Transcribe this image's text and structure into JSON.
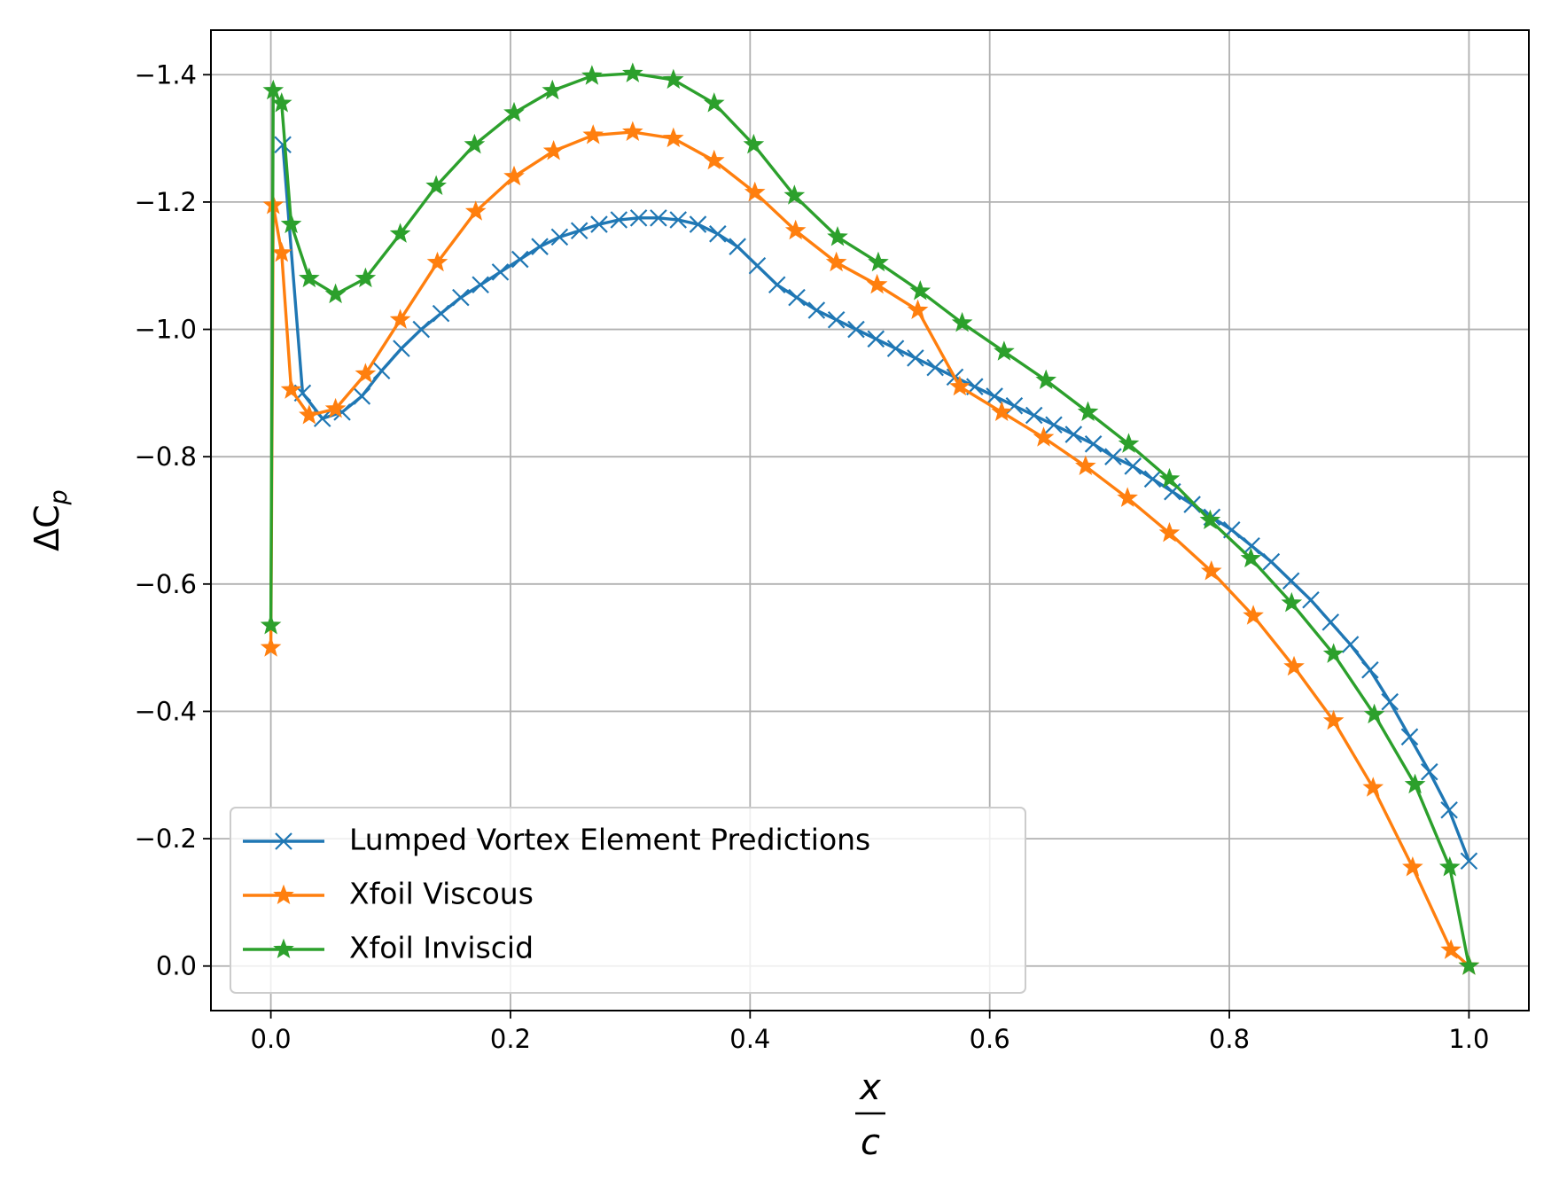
{
  "chart_data": {
    "type": "line",
    "xlabel": {
      "numerator": "x",
      "denominator": "c"
    },
    "ylabel": {
      "main": "ΔC",
      "subscript": "p"
    },
    "xlim": [
      -0.05,
      1.05
    ],
    "ylim": [
      0.07,
      -1.47
    ],
    "xticks": [
      {
        "value": 0,
        "label": "0.0"
      },
      0.2,
      0.4,
      0.6,
      0.8,
      {
        "value": 1,
        "label": "1.0"
      }
    ],
    "yticks": [
      {
        "value": -1.4,
        "label": "−1.4"
      },
      {
        "value": -1.2,
        "label": "−1.2"
      },
      {
        "value": -1.0,
        "label": "−1.0"
      },
      {
        "value": -0.8,
        "label": "−0.8"
      },
      {
        "value": -0.6,
        "label": "−0.6"
      },
      {
        "value": -0.4,
        "label": "−0.4"
      },
      {
        "value": -0.2,
        "label": "−0.2"
      },
      {
        "value": 0,
        "label": "0.0"
      }
    ],
    "grid": true,
    "legend": "lower left",
    "series": [
      {
        "name": "Lumped Vortex Element Predictions",
        "color": "#1f77b4",
        "marker": "x",
        "x": [
          0.01,
          0.0265,
          0.043,
          0.0595,
          0.076,
          0.0925,
          0.109,
          0.1255,
          0.142,
          0.1585,
          0.175,
          0.1915,
          0.208,
          0.2245,
          0.241,
          0.2575,
          0.274,
          0.2905,
          0.307,
          0.3235,
          0.34,
          0.3565,
          0.373,
          0.3895,
          0.406,
          0.4225,
          0.439,
          0.4555,
          0.472,
          0.4885,
          0.505,
          0.5215,
          0.538,
          0.5545,
          0.571,
          0.5875,
          0.604,
          0.6205,
          0.637,
          0.6535,
          0.67,
          0.6865,
          0.703,
          0.7195,
          0.736,
          0.7525,
          0.769,
          0.7855,
          0.802,
          0.8185,
          0.835,
          0.8515,
          0.868,
          0.8845,
          0.901,
          0.9175,
          0.934,
          0.9505,
          0.967,
          0.9835,
          1.0
        ],
        "values": [
          -1.29,
          -0.9,
          -0.86,
          -0.87,
          -0.895,
          -0.935,
          -0.97,
          -1.0,
          -1.025,
          -1.05,
          -1.07,
          -1.09,
          -1.11,
          -1.13,
          -1.145,
          -1.155,
          -1.165,
          -1.172,
          -1.175,
          -1.175,
          -1.172,
          -1.165,
          -1.15,
          -1.13,
          -1.1,
          -1.07,
          -1.05,
          -1.03,
          -1.015,
          -1.0,
          -0.985,
          -0.97,
          -0.955,
          -0.94,
          -0.925,
          -0.91,
          -0.895,
          -0.88,
          -0.865,
          -0.85,
          -0.835,
          -0.82,
          -0.8,
          -0.785,
          -0.765,
          -0.745,
          -0.725,
          -0.705,
          -0.685,
          -0.66,
          -0.635,
          -0.605,
          -0.575,
          -0.54,
          -0.505,
          -0.465,
          -0.415,
          -0.36,
          -0.305,
          -0.245,
          -0.165
        ]
      },
      {
        "name": "Xfoil Viscous",
        "color": "#ff7f0e",
        "marker": "star",
        "x": [
          0,
          0.002,
          0.009,
          0.017,
          0.032,
          0.054,
          0.079,
          0.108,
          0.139,
          0.171,
          0.203,
          0.236,
          0.269,
          0.302,
          0.336,
          0.37,
          0.404,
          0.438,
          0.472,
          0.506,
          0.54,
          0.575,
          0.61,
          0.645,
          0.68,
          0.715,
          0.75,
          0.785,
          0.82,
          0.854,
          0.887,
          0.92,
          0.953,
          0.985,
          1.0
        ],
        "values": [
          -0.5,
          -1.195,
          -1.12,
          -0.905,
          -0.865,
          -0.875,
          -0.93,
          -1.015,
          -1.105,
          -1.185,
          -1.24,
          -1.28,
          -1.305,
          -1.31,
          -1.3,
          -1.265,
          -1.215,
          -1.155,
          -1.105,
          -1.07,
          -1.03,
          -0.91,
          -0.87,
          -0.83,
          -0.785,
          -0.735,
          -0.68,
          -0.62,
          -0.55,
          -0.47,
          -0.385,
          -0.28,
          -0.155,
          -0.025,
          0.0
        ]
      },
      {
        "name": "Xfoil Inviscid",
        "color": "#2ca02c",
        "marker": "star",
        "x": [
          0,
          0.002,
          0.009,
          0.017,
          0.032,
          0.054,
          0.079,
          0.108,
          0.138,
          0.17,
          0.203,
          0.235,
          0.268,
          0.302,
          0.336,
          0.37,
          0.403,
          0.437,
          0.473,
          0.507,
          0.542,
          0.577,
          0.612,
          0.647,
          0.682,
          0.716,
          0.75,
          0.784,
          0.818,
          0.852,
          0.887,
          0.921,
          0.955,
          0.984,
          1.0
        ],
        "values": [
          -0.535,
          -1.375,
          -1.355,
          -1.165,
          -1.08,
          -1.055,
          -1.08,
          -1.15,
          -1.225,
          -1.29,
          -1.34,
          -1.375,
          -1.398,
          -1.402,
          -1.392,
          -1.355,
          -1.29,
          -1.21,
          -1.145,
          -1.105,
          -1.06,
          -1.01,
          -0.965,
          -0.92,
          -0.87,
          -0.82,
          -0.765,
          -0.7,
          -0.64,
          -0.57,
          -0.49,
          -0.395,
          -0.285,
          -0.155,
          0.0
        ]
      }
    ]
  }
}
